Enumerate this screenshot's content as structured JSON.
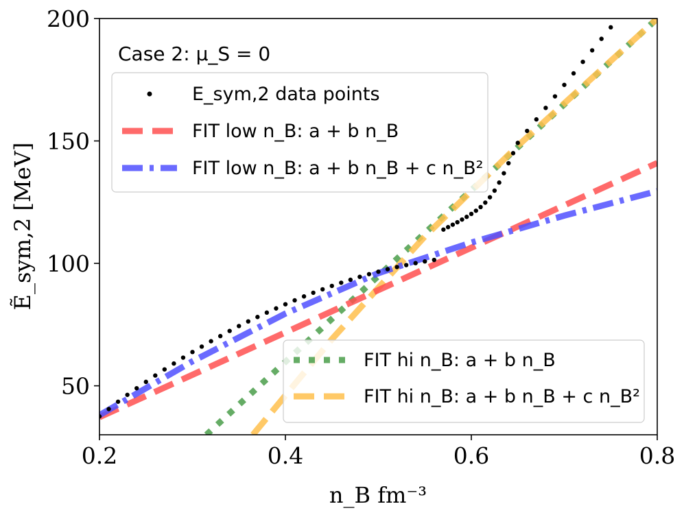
{
  "chart_data": {
    "type": "line",
    "title": "",
    "annotation": "Case 2: μ_S = 0",
    "xlabel": "n_B fm⁻³",
    "ylabel": "Ẽ_sym,2 [MeV]",
    "xlim": [
      0.2,
      0.8
    ],
    "ylim": [
      30,
      200
    ],
    "xticks": [
      0.2,
      0.4,
      0.6,
      0.8
    ],
    "xtick_labels": [
      "0.2",
      "0.4",
      "0.6",
      "0.8"
    ],
    "yticks": [
      50,
      100,
      150,
      200
    ],
    "ytick_labels": [
      "50",
      "100",
      "150",
      "200"
    ],
    "grid": false,
    "legends": [
      {
        "placement": "upper-left",
        "entries": [
          "E_sym,2 data points",
          "FIT low n_B: a + b n_B",
          "FIT low n_B: a + b n_B + c n_B²"
        ]
      },
      {
        "placement": "lower-right",
        "entries": [
          "FIT hi n_B: a + b n_B",
          "FIT hi n_B: a + b n_B + c n_B²"
        ]
      }
    ],
    "series": [
      {
        "name": "E_sym,2 data points",
        "style": "scatter",
        "color": "#000000",
        "x": [
          0.2,
          0.21,
          0.22,
          0.23,
          0.24,
          0.25,
          0.26,
          0.27,
          0.28,
          0.29,
          0.3,
          0.31,
          0.32,
          0.33,
          0.34,
          0.35,
          0.36,
          0.37,
          0.38,
          0.39,
          0.4,
          0.41,
          0.42,
          0.43,
          0.44,
          0.45,
          0.46,
          0.47,
          0.48,
          0.49,
          0.5,
          0.51,
          0.52,
          0.53,
          0.54,
          0.55,
          0.56,
          0.57,
          0.575,
          0.58,
          0.585,
          0.59,
          0.595,
          0.6,
          0.605,
          0.61,
          0.615,
          0.62,
          0.625,
          0.63,
          0.635,
          0.64,
          0.645,
          0.65,
          0.66,
          0.67,
          0.68,
          0.69,
          0.7,
          0.71,
          0.72,
          0.73,
          0.74,
          0.75,
          0.76,
          0.77,
          0.78,
          0.79,
          0.8
        ],
        "y": [
          37.5,
          40.5,
          43.5,
          46.3,
          49.0,
          51.6,
          54.2,
          56.7,
          59.1,
          61.5,
          63.8,
          66.0,
          68.2,
          70.3,
          72.4,
          74.4,
          76.3,
          78.1,
          79.9,
          81.6,
          83.3,
          84.9,
          86.5,
          88.0,
          89.4,
          90.8,
          92.1,
          93.3,
          94.5,
          95.6,
          96.6,
          97.6,
          98.5,
          99.3,
          100.1,
          100.8,
          101.4,
          113.8,
          114.8,
          115.8,
          116.8,
          117.9,
          119.0,
          120.2,
          121.5,
          123.0,
          124.8,
          127.0,
          129.7,
          133.0,
          136.8,
          140.9,
          145.0,
          149.2,
          154.1,
          158.8,
          163.5,
          168.2,
          172.9,
          177.6,
          182.3,
          187.0,
          191.7,
          196.4,
          201.1,
          205.8,
          210.5,
          215.2,
          219.9
        ]
      },
      {
        "name": "FIT low n_B: a + b n_B",
        "style": "dashed",
        "color": "#ff5050",
        "x": [
          0.2,
          0.8
        ],
        "y": [
          37.2,
          141.0
        ]
      },
      {
        "name": "FIT low n_B: a + b n_B + c n_B²",
        "style": "dashdot",
        "color": "#5050ff",
        "x": [
          0.2,
          0.3,
          0.4,
          0.5,
          0.6,
          0.7,
          0.8
        ],
        "y": [
          38.0,
          60.0,
          79.5,
          96.0,
          108.5,
          119.5,
          129.5
        ]
      },
      {
        "name": "FIT hi n_B: a + b n_B",
        "style": "dotted",
        "color": "#4a9e4a",
        "x": [
          0.315,
          0.8
        ],
        "y": [
          30.0,
          200.0
        ]
      },
      {
        "name": "FIT hi n_B: a + b n_B + c n_B²",
        "style": "dashed",
        "color": "#ffc04c",
        "x": [
          0.365,
          0.45,
          0.55,
          0.65,
          0.8
        ],
        "y": [
          30.0,
          69.0,
          111.0,
          148.0,
          200.0
        ]
      }
    ]
  }
}
